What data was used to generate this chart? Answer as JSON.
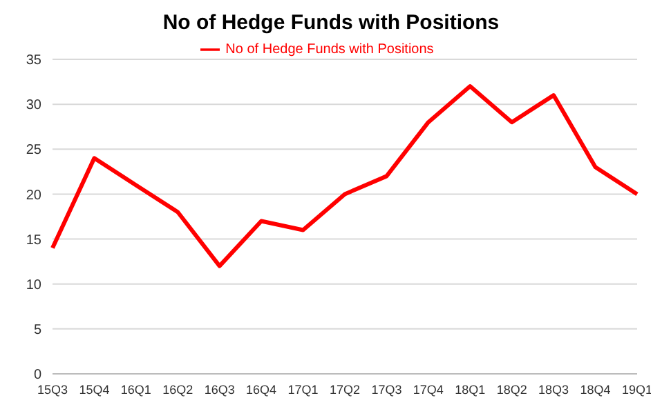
{
  "chart_data": {
    "type": "line",
    "title": "No of Hedge Funds with Positions",
    "categories": [
      "15Q3",
      "15Q4",
      "16Q1",
      "16Q2",
      "16Q3",
      "16Q4",
      "17Q1",
      "17Q2",
      "17Q3",
      "17Q4",
      "18Q1",
      "18Q2",
      "18Q3",
      "18Q4",
      "19Q1"
    ],
    "series": [
      {
        "name": "No of Hedge Funds with Positions",
        "color": "#ff0000",
        "values": [
          14,
          24,
          21,
          18,
          12,
          17,
          16,
          20,
          22,
          28,
          32,
          28,
          31,
          23,
          20
        ]
      }
    ],
    "ylim": [
      0,
      35
    ],
    "yticks": [
      0,
      5,
      10,
      15,
      20,
      25,
      30,
      35
    ],
    "grid": "y",
    "legend": "top",
    "marker": "none",
    "line_style": "solid"
  }
}
